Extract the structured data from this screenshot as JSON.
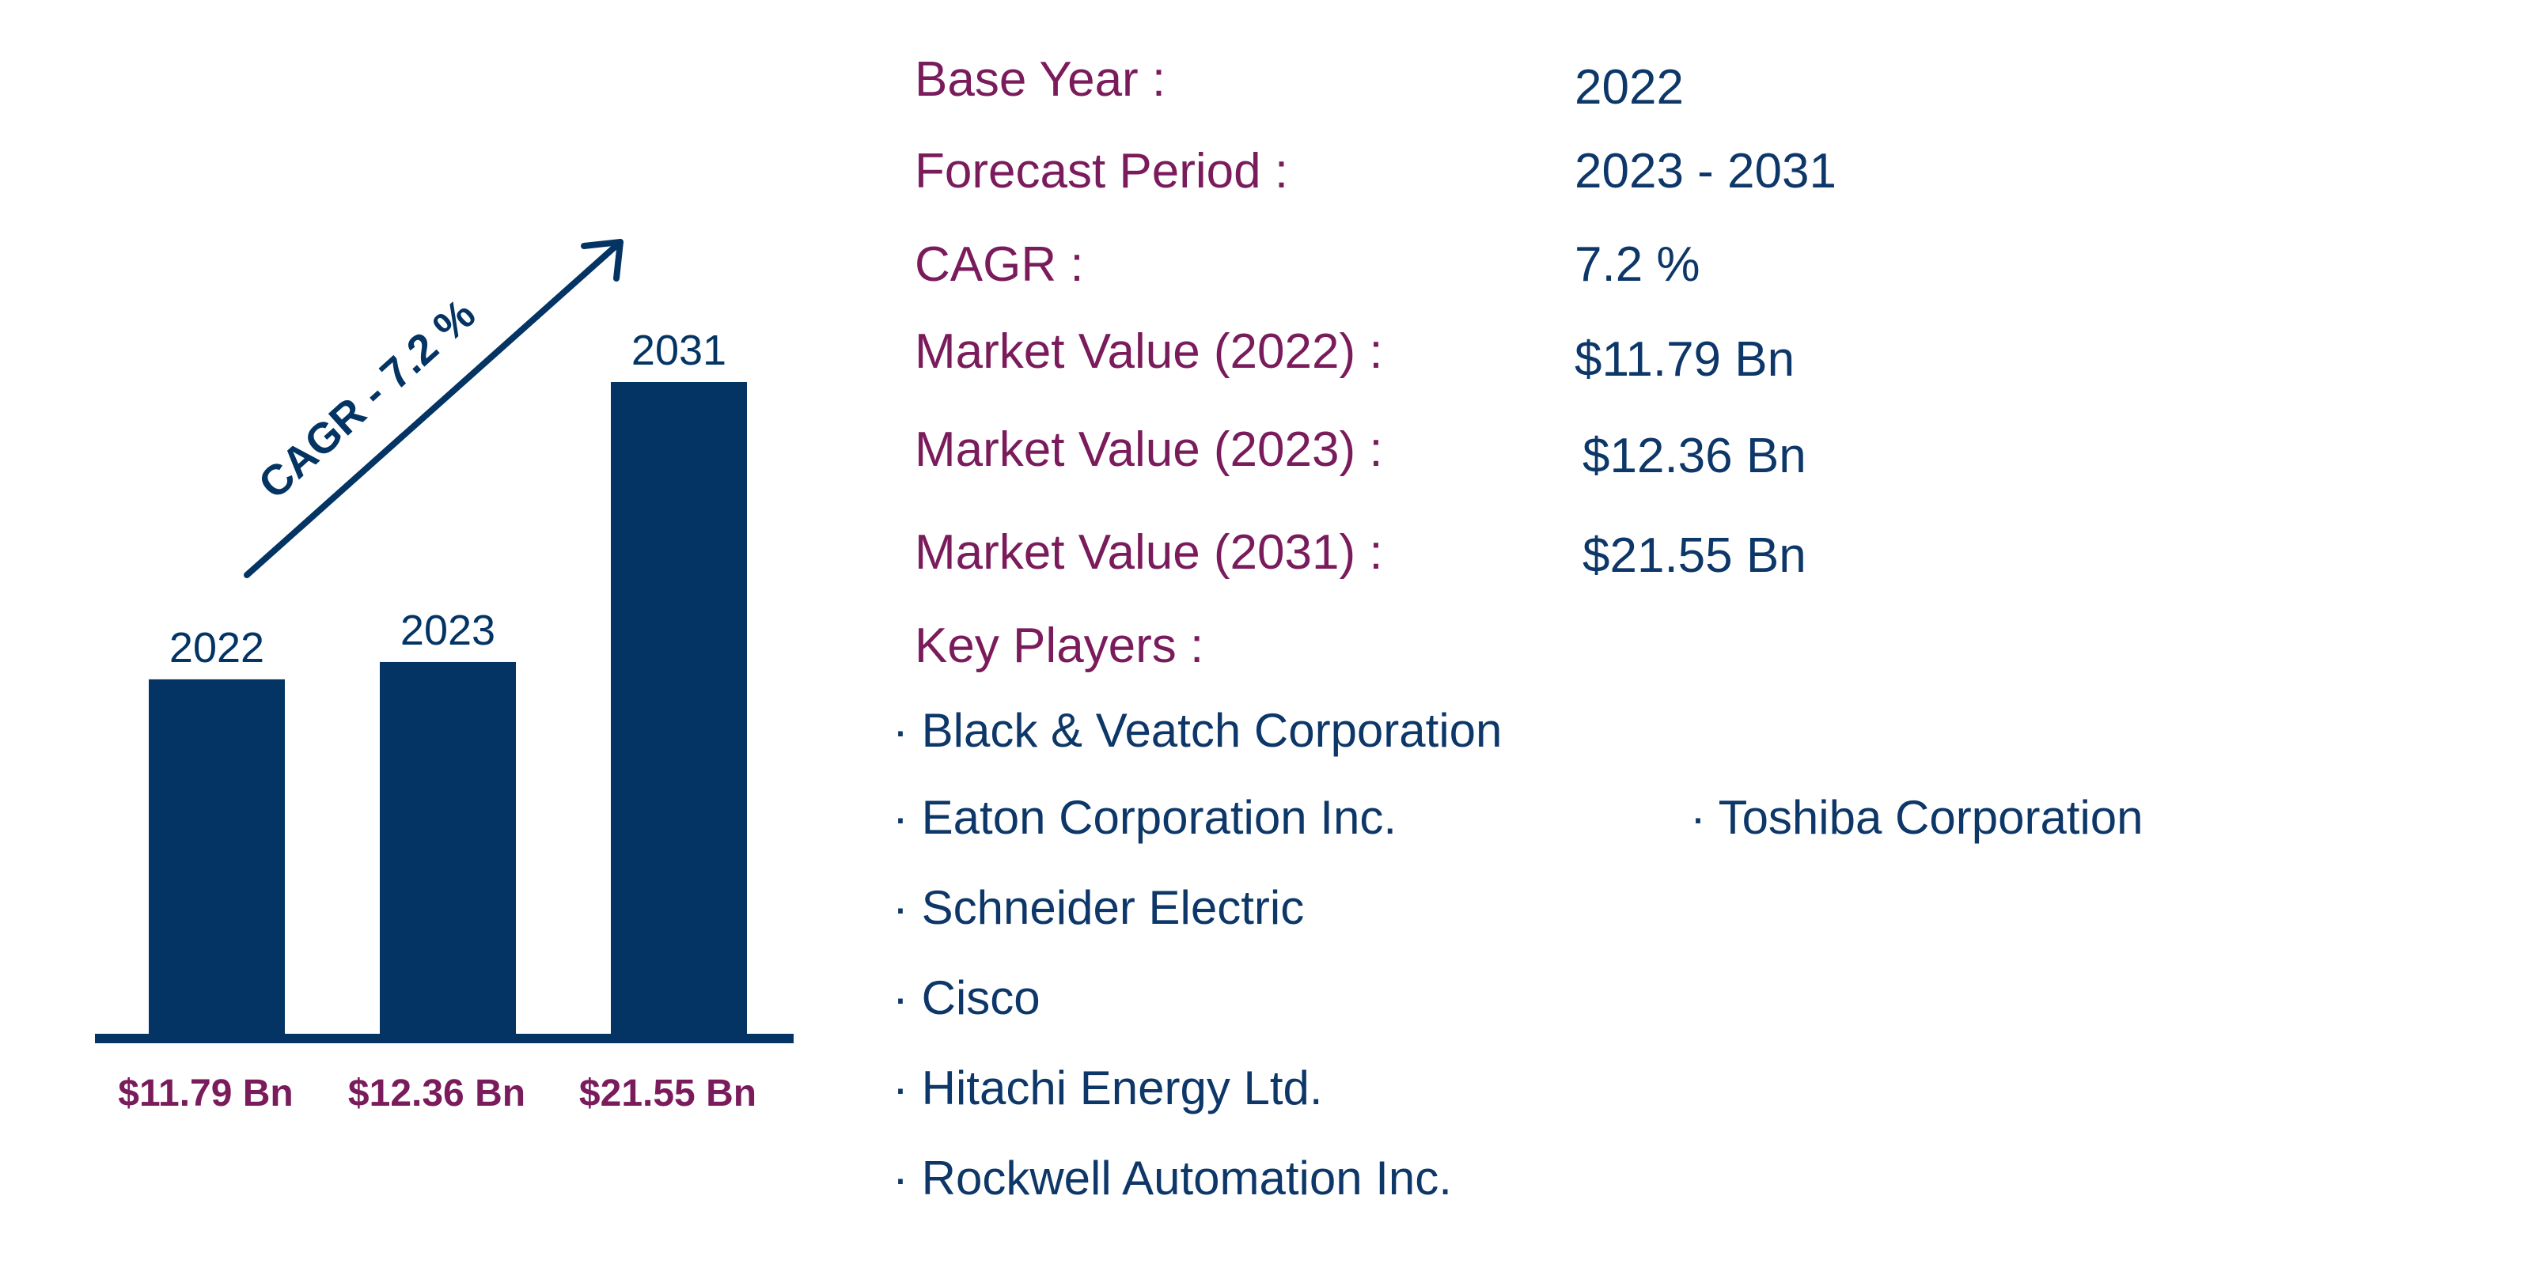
{
  "colors": {
    "bar": "#033464",
    "label_accent": "#7a1b5c",
    "text_primary": "#0d3768"
  },
  "chart_data": {
    "type": "bar",
    "categories": [
      "2022",
      "2023",
      "2031"
    ],
    "values": [
      11.79,
      12.36,
      21.55
    ],
    "value_labels": [
      "$11.79 Bn",
      "$12.36 Bn",
      "$21.55 Bn"
    ],
    "annotation": "CAGR - 7.2 %",
    "axis_visible": false,
    "grid": false
  },
  "info": {
    "base_year_label": "Base Year :",
    "base_year_value": "2022",
    "forecast_label": "Forecast Period :",
    "forecast_value": "2023 - 2031",
    "cagr_label": "CAGR :",
    "cagr_value": "7.2 %",
    "mv2022_label": "Market Value (2022) :",
    "mv2022_value": "$11.79 Bn",
    "mv2023_label": "Market Value (2023) :",
    "mv2023_value": "$12.36 Bn",
    "mv2031_label": "Market Value (2031) :",
    "mv2031_value": "$21.55 Bn",
    "key_players_label": "Key Players :"
  },
  "players": [
    "· Black & Veatch Corporation",
    "· Eaton Corporation Inc.",
    "· Schneider Electric",
    "· Cisco",
    "· Hitachi Energy Ltd.",
    "· Rockwell Automation Inc.",
    "· Toshiba Corporation"
  ]
}
